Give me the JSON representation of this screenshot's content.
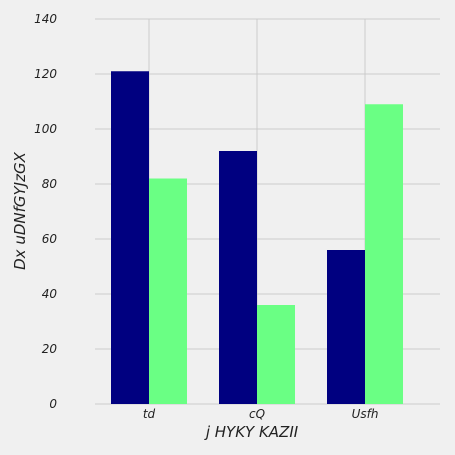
{
  "chart_data": {
    "type": "bar",
    "title": "",
    "xlabel": "j HYKY KAZII",
    "ylabel": "Dx uDNfGYJzGX",
    "categories": [
      "td",
      "cQ",
      "Usfh"
    ],
    "series": [
      {
        "color": "#000080",
        "values": [
          121,
          92,
          56
        ]
      },
      {
        "color": "#6aff84",
        "values": [
          82,
          36,
          109
        ]
      }
    ],
    "ylim": [
      0,
      140
    ],
    "yticks": [
      0,
      20,
      40,
      60,
      80,
      100,
      120,
      140
    ],
    "grid": true,
    "legend": "none",
    "background_color": "#f0f0f0",
    "grid_color": "#cbcbcb"
  }
}
